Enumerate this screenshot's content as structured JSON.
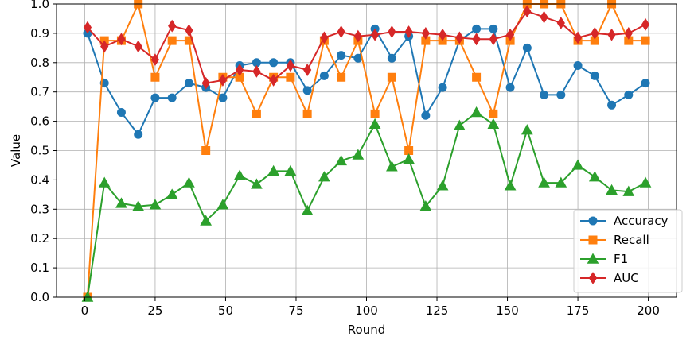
{
  "chart_data": {
    "type": "line",
    "title": "",
    "xlabel": "Round",
    "ylabel": "Value",
    "xlim": [
      -10,
      210
    ],
    "ylim": [
      0.0,
      1.0
    ],
    "grid": true,
    "legend_position": "lower-right",
    "xticks": [
      0,
      25,
      50,
      75,
      100,
      125,
      150,
      175,
      200
    ],
    "yticks": [
      0.0,
      0.1,
      0.2,
      0.3,
      0.4,
      0.5,
      0.6,
      0.7,
      0.8,
      0.9,
      1.0
    ],
    "x": [
      1,
      7,
      13,
      19,
      25,
      31,
      37,
      43,
      49,
      55,
      61,
      67,
      73,
      79,
      85,
      91,
      97,
      103,
      109,
      115,
      121,
      127,
      133,
      139,
      145,
      151,
      157,
      163,
      169,
      175,
      181,
      187,
      193,
      199
    ],
    "series": [
      {
        "name": "Accuracy",
        "color": "#1f77b4",
        "marker": "circle",
        "values": [
          0.9,
          0.73,
          0.63,
          0.555,
          0.68,
          0.68,
          0.73,
          0.715,
          0.68,
          0.79,
          0.8,
          0.8,
          0.8,
          0.705,
          0.755,
          0.825,
          0.815,
          0.915,
          0.815,
          0.89,
          0.62,
          0.715,
          0.875,
          0.915,
          0.915,
          0.715,
          0.85,
          0.69,
          0.69,
          0.79,
          0.755,
          0.655,
          0.69,
          0.73
        ]
      },
      {
        "name": "Recall",
        "color": "#ff7f0e",
        "marker": "square",
        "values": [
          0.0,
          0.875,
          0.875,
          1.0,
          0.75,
          0.875,
          0.875,
          0.5,
          0.75,
          0.75,
          0.625,
          0.75,
          0.75,
          0.625,
          0.875,
          0.75,
          0.875,
          0.625,
          0.75,
          0.5,
          0.875,
          0.875,
          0.875,
          0.75,
          0.625,
          0.875,
          1.0,
          1.0,
          1.0,
          0.875,
          0.875,
          1.0,
          0.875,
          0.875
        ]
      },
      {
        "name": "F1",
        "color": "#2ca02c",
        "marker": "triangle",
        "values": [
          0.0,
          0.39,
          0.32,
          0.31,
          0.315,
          0.35,
          0.39,
          0.26,
          0.315,
          0.415,
          0.385,
          0.43,
          0.43,
          0.295,
          0.41,
          0.465,
          0.485,
          0.59,
          0.445,
          0.47,
          0.31,
          0.38,
          0.585,
          0.63,
          0.59,
          0.38,
          0.57,
          0.39,
          0.39,
          0.45,
          0.41,
          0.365,
          0.36,
          0.39
        ]
      },
      {
        "name": "AUC",
        "color": "#d62728",
        "marker": "diamond",
        "values": [
          0.92,
          0.855,
          0.88,
          0.855,
          0.81,
          0.925,
          0.91,
          0.73,
          0.74,
          0.775,
          0.77,
          0.74,
          0.79,
          0.775,
          0.885,
          0.905,
          0.89,
          0.895,
          0.905,
          0.905,
          0.9,
          0.895,
          0.885,
          0.88,
          0.88,
          0.895,
          0.975,
          0.955,
          0.935,
          0.885,
          0.9,
          0.895,
          0.9,
          0.93
        ]
      }
    ]
  }
}
